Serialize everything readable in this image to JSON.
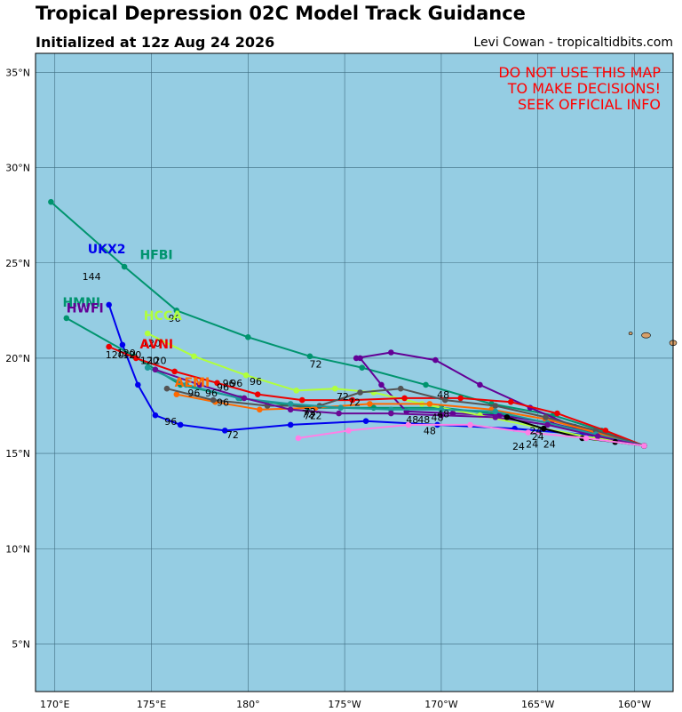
{
  "header": {
    "title": "Tropical Depression 02C Model Track Guidance",
    "subtitle": "Initialized at 12z Aug 24 2026",
    "credit": "Levi Cowan - tropicaltidbits.com"
  },
  "warning": {
    "lines": [
      "DO NOT USE THIS MAP",
      "TO MAKE DECISIONS!",
      "SEEK OFFICIAL INFO"
    ],
    "color": "#ff0000"
  },
  "map": {
    "ocean_color": "#95cde3",
    "grid_color": "#3f6d80",
    "land_color": "#d8a06a",
    "lon_range": [
      170,
      203
    ],
    "lat_range": [
      2.5,
      36
    ],
    "lat_ticks": [
      {
        "value": 5,
        "label": "5°N"
      },
      {
        "value": 10,
        "label": "10°N"
      },
      {
        "value": 15,
        "label": "15°N"
      },
      {
        "value": 20,
        "label": "20°N"
      },
      {
        "value": 25,
        "label": "25°N"
      },
      {
        "value": 30,
        "label": "30°N"
      },
      {
        "value": 35,
        "label": "35°N"
      }
    ],
    "lon_ticks": [
      {
        "value": 171,
        "label": "170°E"
      },
      {
        "value": 176,
        "label": "175°E"
      },
      {
        "value": 181,
        "label": "180°"
      },
      {
        "value": 186,
        "label": "175°W"
      },
      {
        "value": 191,
        "label": "170°W"
      },
      {
        "value": 196,
        "label": "165°W"
      },
      {
        "value": 201,
        "label": "160°W"
      }
    ]
  },
  "chart_data": {
    "type": "scatter",
    "title": "Tropical Depression 02C Model Track Guidance",
    "x_units": "longitude (°E, 0-360)",
    "y_units": "latitude (°N)",
    "series": [
      {
        "name": "UKX2",
        "color": "#0000ee",
        "show_name": true,
        "name_lon": 172.7,
        "name_lat": 25.5,
        "lon": [
          201.5,
          198.3,
          194.8,
          190.8,
          187.1,
          183.2,
          179.8,
          177.5,
          176.2,
          175.3,
          174.5,
          173.8
        ],
        "lat": [
          15.4,
          16.0,
          16.3,
          16.5,
          16.7,
          16.5,
          16.2,
          16.5,
          17.0,
          18.6,
          20.7,
          22.8
        ],
        "hour_labels": [
          {
            "text": "24",
            "lon": 195.7,
            "lat": 15.3
          },
          {
            "text": "48",
            "lon": 189.5,
            "lat": 16.6
          },
          {
            "text": "72",
            "lon": 180.2,
            "lat": 15.8
          },
          {
            "text": "96",
            "lon": 177.0,
            "lat": 16.5
          },
          {
            "text": "144",
            "lon": 172.9,
            "lat": 24.1
          }
        ]
      },
      {
        "name": "HFBI",
        "color": "#00946e",
        "show_name": true,
        "name_lon": 175.4,
        "name_lat": 25.2,
        "lon": [
          201.5,
          199.3,
          196.8,
          193.6,
          190.2,
          186.9,
          184.2,
          181.0,
          177.3,
          174.6,
          170.8
        ],
        "lat": [
          15.4,
          16.2,
          17.0,
          17.6,
          18.6,
          19.5,
          20.1,
          21.1,
          22.5,
          24.8,
          28.2
        ],
        "hour_labels": [
          {
            "text": "72",
            "lon": 184.5,
            "lat": 19.5
          },
          {
            "text": "96",
            "lon": 177.2,
            "lat": 21.9
          }
        ]
      },
      {
        "name": "HMNI",
        "color": "#00946e",
        "show_name": true,
        "name_lon": 171.4,
        "name_lat": 22.7,
        "lon": [
          201.5,
          198.0,
          194.5,
          191.0,
          187.5,
          184.1,
          180.6,
          177.5,
          175.1,
          171.6
        ],
        "lat": [
          15.4,
          16.3,
          17.0,
          17.4,
          17.4,
          17.4,
          17.9,
          18.6,
          20.1,
          22.1
        ],
        "hour_labels": []
      },
      {
        "name": "HWFI",
        "color": "#630096",
        "show_name": true,
        "name_lon": 171.6,
        "name_lat": 22.4,
        "lon": [
          201.5,
          199.3,
          196.7,
          194.0,
          191.6,
          189.2,
          187.9,
          186.8,
          186.6,
          188.4,
          190.7,
          193.0,
          195.6,
          197.9,
          200.0
        ],
        "lat": [
          15.4,
          15.9,
          16.6,
          17.0,
          17.1,
          17.2,
          18.6,
          20.0,
          20.0,
          20.3,
          19.9,
          18.6,
          17.4,
          16.4,
          15.8
        ],
        "hour_labels": []
      },
      {
        "name": "HCCA",
        "color": "#b0ff3c",
        "show_name": true,
        "name_lon": 175.6,
        "name_lat": 22.0,
        "lon": [
          201.5,
          199.0,
          196.3,
          193.0,
          190.0,
          187.5,
          185.5,
          183.5,
          180.9,
          178.2,
          175.8
        ],
        "lat": [
          15.4,
          15.8,
          16.3,
          17.0,
          17.6,
          18.2,
          18.4,
          18.3,
          19.1,
          20.1,
          21.3
        ],
        "hour_labels": [
          {
            "text": "96",
            "lon": 181.4,
            "lat": 18.6
          },
          {
            "text": "120",
            "lon": 176.0,
            "lat": 20.6
          }
        ]
      },
      {
        "name": "AVNI",
        "color": "#ee0000",
        "show_name": true,
        "name_lon": 175.4,
        "name_lat": 20.5,
        "lon": [
          201.5,
          199.5,
          197.0,
          194.6,
          192.0,
          189.1,
          186.4,
          183.8,
          181.5,
          179.4,
          177.2,
          175.2,
          173.8
        ],
        "lat": [
          15.4,
          16.2,
          17.1,
          17.7,
          17.9,
          17.9,
          17.8,
          17.8,
          18.1,
          18.7,
          19.3,
          20.0,
          20.6
        ],
        "hour_labels": [
          {
            "text": "72",
            "lon": 186.5,
            "lat": 17.5
          },
          {
            "text": "48",
            "lon": 191.1,
            "lat": 17.9
          },
          {
            "text": "96",
            "lon": 180.0,
            "lat": 18.5
          },
          {
            "text": "120",
            "lon": 174.1,
            "lat": 20.0
          }
        ]
      },
      {
        "name": "AEMI",
        "color": "#ff6a00",
        "show_name": true,
        "name_lon": 177.2,
        "name_lat": 18.5,
        "lon": [
          201.5,
          199.0,
          196.4,
          193.6,
          190.4,
          187.3,
          184.5,
          181.6,
          179.3,
          177.3
        ],
        "lat": [
          15.4,
          16.1,
          16.8,
          17.3,
          17.6,
          17.6,
          17.4,
          17.3,
          17.7,
          18.1
        ],
        "hour_labels": [
          {
            "text": "72",
            "lon": 184.2,
            "lat": 17.0
          },
          {
            "text": "96",
            "lon": 179.7,
            "lat": 17.5
          }
        ]
      },
      {
        "name": "CMC",
        "color": "#545454",
        "show_name": false,
        "lon": [
          201.5,
          199.0,
          196.4,
          193.8,
          191.2,
          188.9,
          186.8,
          184.7,
          182.0,
          179.2,
          176.8
        ],
        "lat": [
          15.4,
          16.2,
          16.9,
          17.5,
          17.8,
          18.4,
          18.2,
          17.5,
          17.5,
          17.8,
          18.4
        ],
        "hour_labels": [
          {
            "text": "72",
            "lon": 185.9,
            "lat": 17.8
          },
          {
            "text": "96",
            "lon": 179.7,
            "lat": 18.3
          },
          {
            "text": "120",
            "lon": 176.3,
            "lat": 19.7
          }
        ]
      },
      {
        "name": "NVGM",
        "color": "#1d9999",
        "show_name": false,
        "lon": [
          201.5,
          199.0,
          196.5,
          193.8,
          191.0,
          188.4,
          185.8,
          183.2,
          180.5,
          177.8,
          175.8
        ],
        "lat": [
          15.4,
          16.0,
          16.6,
          17.2,
          17.3,
          17.3,
          17.4,
          17.6,
          17.9,
          18.6,
          19.5
        ],
        "hour_labels": [
          {
            "text": "96",
            "lon": 178.2,
            "lat": 18.0
          },
          {
            "text": "120",
            "lon": 175.0,
            "lat": 20.0
          }
        ]
      },
      {
        "name": "EMXI",
        "color": "#6a0a96",
        "show_name": false,
        "lon": [
          201.5,
          199.1,
          196.5,
          193.8,
          191.0,
          188.4,
          185.7,
          183.2,
          180.8,
          178.5,
          176.2
        ],
        "lat": [
          15.4,
          15.9,
          16.5,
          16.9,
          17.0,
          17.1,
          17.1,
          17.3,
          17.9,
          18.6,
          19.4
        ],
        "hour_labels": [
          {
            "text": "48",
            "lon": 190.8,
            "lat": 16.7
          },
          {
            "text": "72",
            "lon": 184.5,
            "lat": 16.8
          },
          {
            "text": "96",
            "lon": 179.1,
            "lat": 18.0
          },
          {
            "text": "120",
            "lon": 175.9,
            "lat": 19.7
          }
        ]
      },
      {
        "name": "OFCL",
        "color": "#000000",
        "show_name": false,
        "lon": [
          201.5,
          200.0,
          198.3,
          196.3,
          194.4
        ],
        "lat": [
          15.4,
          15.6,
          15.8,
          16.3,
          16.9
        ],
        "hour_labels": [
          {
            "text": "24",
            "lon": 196.0,
            "lat": 15.7
          },
          {
            "text": "24",
            "lon": 195.0,
            "lat": 15.2
          }
        ]
      },
      {
        "name": "BAMD",
        "color": "#ff7fe6",
        "show_name": false,
        "lon": [
          201.5,
          198.5,
          195.5,
          192.5,
          189.3,
          186.2,
          183.6
        ],
        "lat": [
          15.4,
          15.8,
          16.1,
          16.5,
          16.5,
          16.2,
          15.8
        ],
        "hour_labels": [
          {
            "text": "48",
            "lon": 190.4,
            "lat": 16.0
          },
          {
            "text": "72",
            "lon": 184.2,
            "lat": 16.8
          }
        ]
      }
    ],
    "extra_hour_labels": [
      {
        "text": "24",
        "lon": 196.6,
        "lat": 15.3
      },
      {
        "text": "24",
        "lon": 195.9,
        "lat": 16.0
      },
      {
        "text": "48",
        "lon": 191.1,
        "lat": 16.9
      },
      {
        "text": "48",
        "lon": 190.1,
        "lat": 16.6
      },
      {
        "text": "72",
        "lon": 184.1,
        "lat": 16.9
      },
      {
        "text": "120",
        "lon": 174.7,
        "lat": 20.1
      },
      {
        "text": "96",
        "lon": 180.4,
        "lat": 18.5
      }
    ],
    "islands": [
      {
        "name": "Hawaii",
        "lon": 201.6,
        "lat": 21.2,
        "rx": 5,
        "ry": 3
      },
      {
        "name": "Maui",
        "lon": 203.0,
        "lat": 20.8,
        "rx": 4,
        "ry": 3
      },
      {
        "name": "Oahu",
        "lon": 200.8,
        "lat": 21.3,
        "rx": 2,
        "ry": 1.5
      }
    ]
  }
}
